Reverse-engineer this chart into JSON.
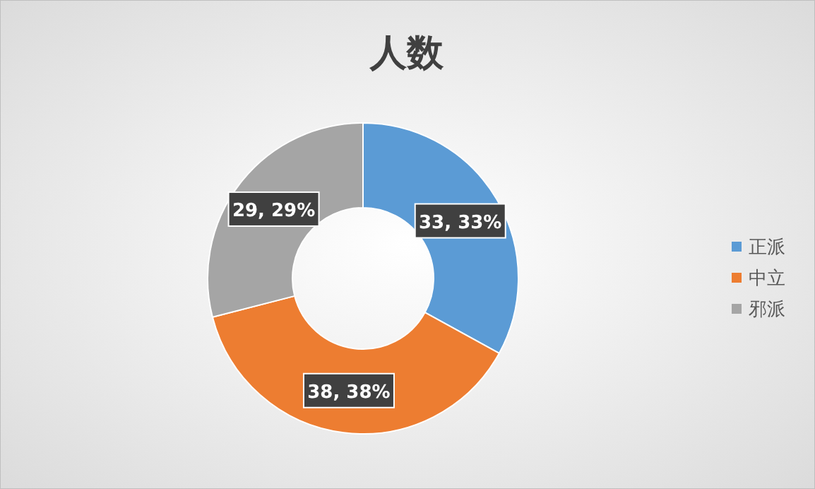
{
  "chart_data": {
    "type": "donut",
    "title": "人数",
    "categories": [
      "正派",
      "中立",
      "邪派"
    ],
    "values": [
      33,
      38,
      29
    ],
    "colors": [
      "#5b9bd5",
      "#ed7d31",
      "#a5a5a5"
    ],
    "value_labels": [
      "33, 33%",
      "38, 38%",
      "29, 29%"
    ],
    "legend": "right"
  }
}
